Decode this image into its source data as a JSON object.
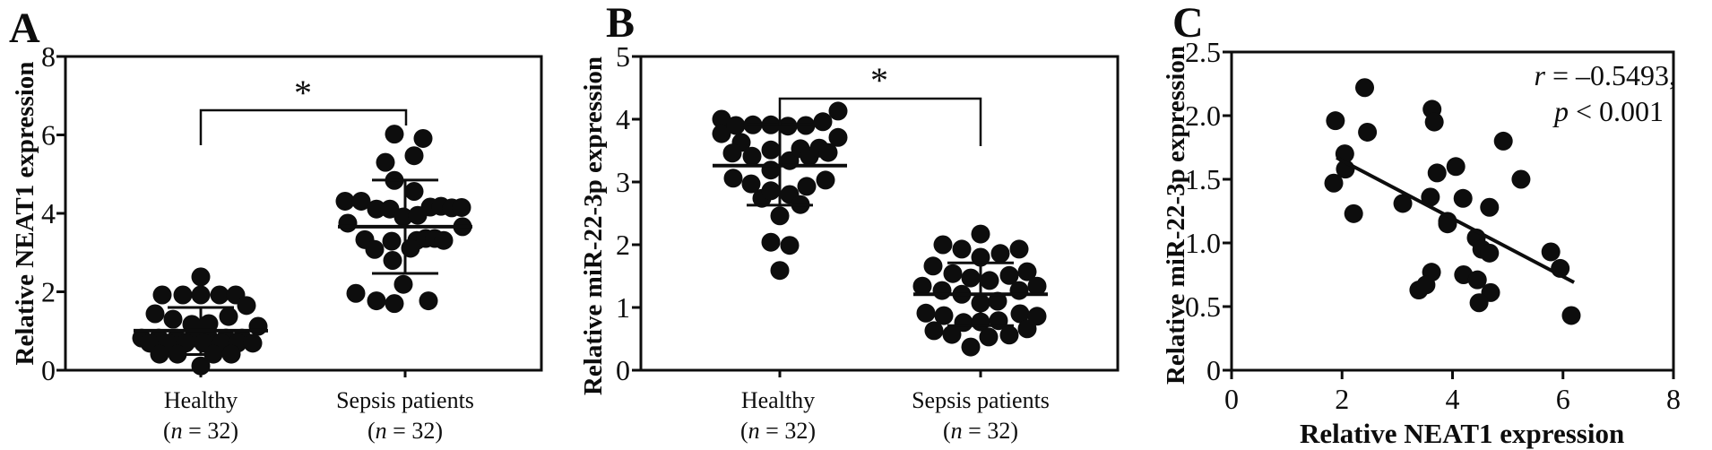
{
  "figure": {
    "background": "#ffffff",
    "ink": "#0d0d0d"
  },
  "chart_data": [
    {
      "id": "A",
      "letter": "A",
      "type": "dot",
      "y_title": "Relative NEAT1 expression",
      "y_axis": {
        "min": 0,
        "max": 8,
        "ticks": [
          [
            "0",
            0
          ],
          [
            "2",
            2
          ],
          [
            "4",
            4
          ],
          [
            "6",
            6
          ],
          [
            "8",
            8
          ]
        ]
      },
      "significance": {
        "label": "*"
      },
      "groups": [
        {
          "label": "Healthy",
          "sublabel_parts": [
            "(",
            "n",
            " = 32)"
          ],
          "stats": {
            "mean": 1.01,
            "upper": 1.6,
            "lower": 0.4
          },
          "dots": [
            [
              0,
              2.38
            ],
            [
              -43,
              1.92
            ],
            [
              -20,
              1.92
            ],
            [
              0,
              1.92
            ],
            [
              21,
              1.92
            ],
            [
              39,
              1.92
            ],
            [
              51,
              1.65
            ],
            [
              -51,
              1.44
            ],
            [
              31,
              1.37
            ],
            [
              -31,
              1.3
            ],
            [
              -10,
              1.17
            ],
            [
              9,
              1.19
            ],
            [
              64,
              1.12
            ],
            [
              -66,
              0.82
            ],
            [
              -47,
              0.82
            ],
            [
              -27,
              0.82
            ],
            [
              -9,
              0.82
            ],
            [
              9,
              0.82
            ],
            [
              28,
              0.82
            ],
            [
              46,
              0.82
            ],
            [
              -57,
              0.69
            ],
            [
              -37,
              0.69
            ],
            [
              -17,
              0.69
            ],
            [
              3,
              0.69
            ],
            [
              23,
              0.69
            ],
            [
              41,
              0.69
            ],
            [
              58,
              0.69
            ],
            [
              -46,
              0.41
            ],
            [
              -26,
              0.41
            ],
            [
              14,
              0.41
            ],
            [
              34,
              0.41
            ],
            [
              0,
              0.11
            ]
          ]
        },
        {
          "label": "Sepsis patients",
          "sublabel_parts": [
            "(",
            "n",
            " = 32)"
          ],
          "stats": {
            "mean": 3.66,
            "upper": 4.85,
            "lower": 2.47
          },
          "dots": [
            [
              -12,
              6.02
            ],
            [
              20,
              5.91
            ],
            [
              -22,
              5.3
            ],
            [
              10,
              5.47
            ],
            [
              -12,
              4.84
            ],
            [
              10,
              4.56
            ],
            [
              -67,
              4.31
            ],
            [
              -49,
              4.31
            ],
            [
              -32,
              4.11
            ],
            [
              -17,
              4.11
            ],
            [
              28,
              4.16
            ],
            [
              40,
              4.18
            ],
            [
              52,
              4.14
            ],
            [
              63,
              4.15
            ],
            [
              -2,
              3.91
            ],
            [
              14,
              3.95
            ],
            [
              -64,
              3.75
            ],
            [
              64,
              3.66
            ],
            [
              -45,
              3.33
            ],
            [
              -15,
              3.29
            ],
            [
              13,
              3.31
            ],
            [
              23,
              3.36
            ],
            [
              33,
              3.36
            ],
            [
              43,
              3.31
            ],
            [
              -34,
              3.08
            ],
            [
              6,
              3.11
            ],
            [
              -14,
              2.8
            ],
            [
              -2,
              2.19
            ],
            [
              -55,
              1.96
            ],
            [
              -32,
              1.77
            ],
            [
              -12,
              1.7
            ],
            [
              26,
              1.77
            ]
          ]
        }
      ]
    },
    {
      "id": "B",
      "letter": "B",
      "type": "dot",
      "y_title": "Relative miR-22-3p expression",
      "y_axis": {
        "min": 0,
        "max": 5,
        "ticks": [
          [
            "0",
            0
          ],
          [
            "1",
            1
          ],
          [
            "2",
            2
          ],
          [
            "3",
            3
          ],
          [
            "4",
            4
          ],
          [
            "5",
            5
          ]
        ]
      },
      "significance": {
        "label": "*"
      },
      "groups": [
        {
          "label": "Healthy",
          "sublabel_parts": [
            "(",
            "n",
            " = 32)"
          ],
          "stats": {
            "mean": 3.26,
            "upper": 3.91,
            "lower": 2.63
          },
          "dots": [
            [
              -65,
              4.0
            ],
            [
              -65,
              3.77
            ],
            [
              -49,
              3.9
            ],
            [
              -30,
              3.91
            ],
            [
              -10,
              3.91
            ],
            [
              9,
              3.89
            ],
            [
              29,
              3.9
            ],
            [
              48,
              3.96
            ],
            [
              65,
              4.13
            ],
            [
              65,
              3.71
            ],
            [
              -43,
              3.63
            ],
            [
              -53,
              3.46
            ],
            [
              -31,
              3.41
            ],
            [
              -10,
              3.51
            ],
            [
              -10,
              3.19
            ],
            [
              11,
              3.34
            ],
            [
              23,
              3.53
            ],
            [
              33,
              3.41
            ],
            [
              44,
              3.54
            ],
            [
              54,
              3.47
            ],
            [
              -52,
              3.06
            ],
            [
              -32,
              2.97
            ],
            [
              -20,
              2.74
            ],
            [
              -10,
              2.86
            ],
            [
              11,
              2.8
            ],
            [
              30,
              2.93
            ],
            [
              51,
              3.03
            ],
            [
              23,
              2.64
            ],
            [
              0,
              2.46
            ],
            [
              -10,
              2.04
            ],
            [
              11,
              1.99
            ],
            [
              0,
              1.59
            ]
          ]
        },
        {
          "label": "Sepsis patients",
          "sublabel_parts": [
            "(",
            "n",
            " = 32)"
          ],
          "stats": {
            "mean": 1.21,
            "upper": 1.71,
            "lower": 0.71
          },
          "dots": [
            [
              0,
              2.17
            ],
            [
              -42,
              2.0
            ],
            [
              -21,
              1.93
            ],
            [
              22,
              1.86
            ],
            [
              43,
              1.93
            ],
            [
              0,
              1.8
            ],
            [
              -53,
              1.66
            ],
            [
              -31,
              1.54
            ],
            [
              -11,
              1.47
            ],
            [
              10,
              1.43
            ],
            [
              32,
              1.51
            ],
            [
              52,
              1.57
            ],
            [
              -65,
              1.34
            ],
            [
              -43,
              1.27
            ],
            [
              -21,
              1.21
            ],
            [
              43,
              1.27
            ],
            [
              63,
              1.34
            ],
            [
              0,
              1.07
            ],
            [
              19,
              1.1
            ],
            [
              -61,
              0.91
            ],
            [
              -41,
              0.87
            ],
            [
              44,
              0.9
            ],
            [
              63,
              0.86
            ],
            [
              -19,
              0.76
            ],
            [
              0,
              0.77
            ],
            [
              20,
              0.79
            ],
            [
              -52,
              0.63
            ],
            [
              -32,
              0.57
            ],
            [
              32,
              0.56
            ],
            [
              52,
              0.66
            ],
            [
              9,
              0.53
            ],
            [
              -11,
              0.37
            ]
          ]
        }
      ]
    },
    {
      "id": "C",
      "letter": "C",
      "type": "scatter",
      "y_title": "Relative miR-22-3p expression",
      "x_title": "Relative NEAT1 expression",
      "x_axis": {
        "min": 0,
        "max": 8,
        "ticks": [
          [
            "0",
            0
          ],
          [
            "2",
            2
          ],
          [
            "4",
            4
          ],
          [
            "6",
            6
          ],
          [
            "8",
            8
          ]
        ]
      },
      "y_axis": {
        "min": 0,
        "max": 2.5,
        "ticks": [
          [
            "0",
            0
          ],
          [
            "0.5",
            0.5
          ],
          [
            "1.0",
            1.0
          ],
          [
            "1.5",
            1.5
          ],
          [
            "2.0",
            2.0
          ],
          [
            "2.5",
            2.5
          ]
        ]
      },
      "points": [
        [
          2.41,
          2.22
        ],
        [
          1.88,
          1.96
        ],
        [
          2.46,
          1.87
        ],
        [
          3.63,
          2.05
        ],
        [
          3.67,
          1.95
        ],
        [
          2.05,
          1.7
        ],
        [
          2.06,
          1.58
        ],
        [
          1.85,
          1.47
        ],
        [
          3.72,
          1.55
        ],
        [
          3.1,
          1.31
        ],
        [
          3.6,
          1.36
        ],
        [
          2.21,
          1.23
        ],
        [
          3.91,
          1.17
        ],
        [
          3.62,
          0.77
        ],
        [
          3.39,
          0.63
        ],
        [
          3.52,
          0.67
        ],
        [
          4.92,
          1.8
        ],
        [
          4.06,
          1.6
        ],
        [
          5.24,
          1.5
        ],
        [
          4.19,
          1.35
        ],
        [
          4.67,
          1.28
        ],
        [
          3.91,
          1.15
        ],
        [
          4.43,
          1.04
        ],
        [
          4.53,
          0.95
        ],
        [
          4.67,
          0.92
        ],
        [
          5.78,
          0.93
        ],
        [
          5.95,
          0.8
        ],
        [
          4.2,
          0.75
        ],
        [
          4.45,
          0.71
        ],
        [
          4.69,
          0.61
        ],
        [
          4.48,
          0.53
        ],
        [
          6.15,
          0.43
        ]
      ],
      "regression": {
        "x1": 1.9,
        "y1": 1.67,
        "x2": 6.2,
        "y2": 0.69
      },
      "annotation": {
        "line1": [
          "r",
          " = –0.5493,"
        ],
        "line2": [
          "p",
          " < 0.001"
        ]
      }
    }
  ]
}
